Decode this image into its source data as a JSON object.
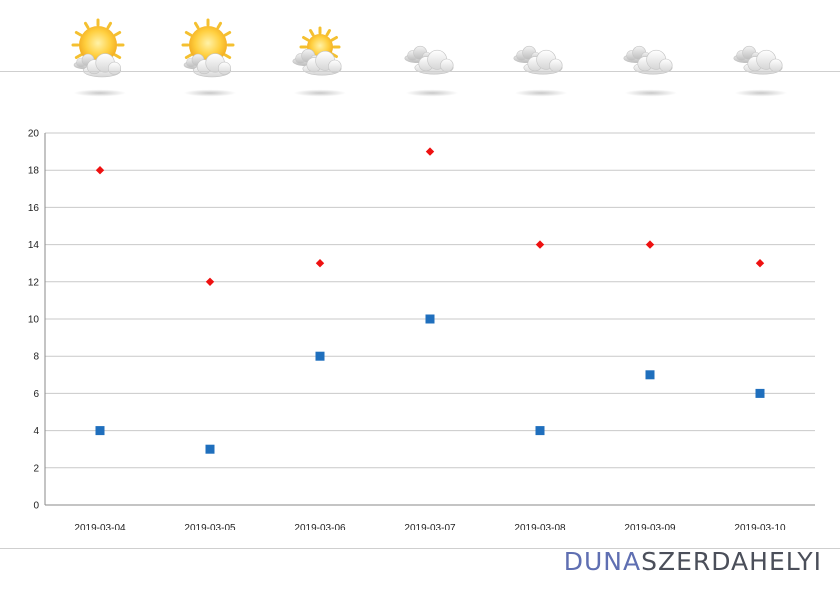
{
  "forecast": {
    "icons": [
      "sun-behind-cloud",
      "sun-behind-cloud",
      "sun-behind-cloud-small",
      "cloudy",
      "cloudy",
      "cloudy",
      "cloudy"
    ]
  },
  "chart_data": {
    "type": "scatter",
    "categories": [
      "2019-03-04",
      "2019-03-05",
      "2019-03-06",
      "2019-03-07",
      "2019-03-08",
      "2019-03-09",
      "2019-03-10"
    ],
    "series": [
      {
        "marker": "diamond",
        "color": "#ee1111",
        "values": [
          18,
          12,
          13,
          19,
          14,
          14,
          13
        ]
      },
      {
        "marker": "square",
        "color": "#1f6fbd",
        "values": [
          4,
          3,
          8,
          10,
          4,
          7,
          6
        ]
      }
    ],
    "ylim": [
      0,
      20
    ],
    "yticks": [
      0,
      2,
      4,
      6,
      8,
      10,
      12,
      14,
      16,
      18,
      20
    ],
    "grid": true,
    "legend": false
  },
  "brand": {
    "part_a": "DUNA",
    "part_b": "SZERDAHELYI",
    "colors": {
      "part_a": "#5f6fb2",
      "part_b": "#4b4f5a"
    }
  }
}
